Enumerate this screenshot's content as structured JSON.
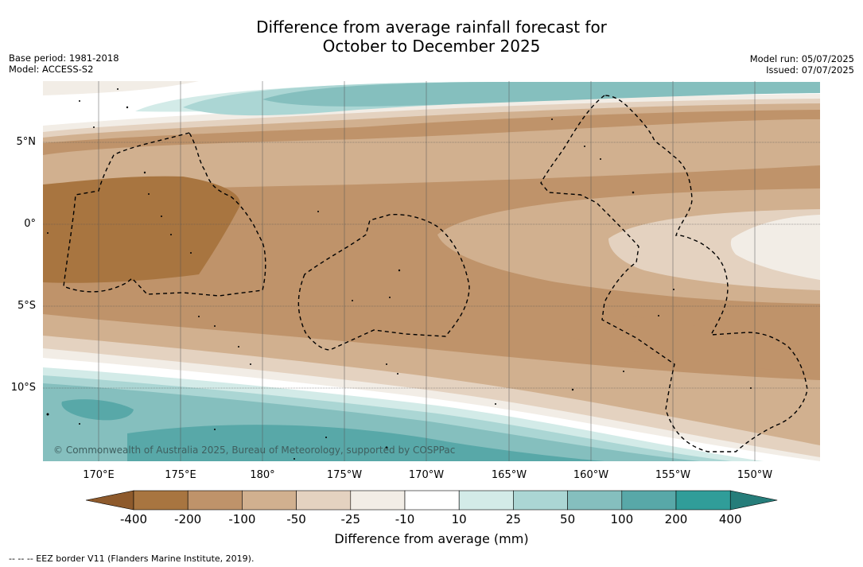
{
  "title_line1": "Difference from average rainfall forecast for",
  "title_line2": "October to December 2025",
  "meta_left": [
    "Base period: 1981-2018",
    "Model: ACCESS-S2"
  ],
  "meta_right": [
    "Model run: 05/07/2025",
    "Issued: 07/07/2025"
  ],
  "lat_labels": [
    "5°N",
    "0°",
    "5°S",
    "10°S"
  ],
  "lon_labels": [
    "170°E",
    "175°E",
    "180°",
    "175°W",
    "170°W",
    "165°W",
    "160°W",
    "155°W",
    "150°W"
  ],
  "copyright": "© Commonwealth of Australia 2025, Bureau of Meteorology, supported by COSPPac",
  "colorbar": {
    "ticks": [
      "-400",
      "-200",
      "-100",
      "-50",
      "-25",
      "-10",
      "10",
      "25",
      "50",
      "100",
      "200",
      "400"
    ],
    "colors": [
      "#a87540",
      "#bf936a",
      "#d1b08f",
      "#e4d2c0",
      "#f2ede6",
      "#ffffff",
      "#d3ebe8",
      "#abd6d4",
      "#85bfbe",
      "#58a8a8",
      "#309d99"
    ],
    "extend_low": "#8e5a2c",
    "extend_high": "#267d7a",
    "label": "Difference from average (mm)"
  },
  "footnote": "--  --  -- EEZ border V11 (Flanders Marine Institute, 2019)."
}
